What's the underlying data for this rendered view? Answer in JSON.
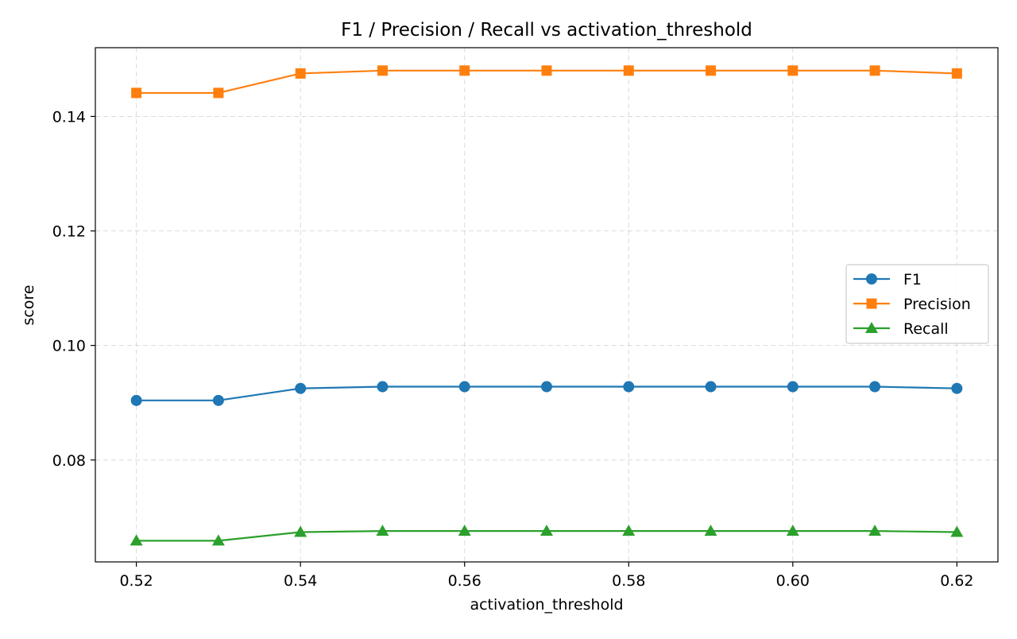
{
  "chart_data": {
    "type": "line",
    "title": "F1 / Precision / Recall vs activation_threshold",
    "xlabel": "activation_threshold",
    "ylabel": "score",
    "x": [
      0.52,
      0.53,
      0.54,
      0.55,
      0.56,
      0.57,
      0.58,
      0.59,
      0.6,
      0.61,
      0.62
    ],
    "xticks": [
      "0.52",
      "0.54",
      "0.56",
      "0.58",
      "0.60",
      "0.62"
    ],
    "yticks": [
      "0.08",
      "0.10",
      "0.12",
      "0.14"
    ],
    "xlim": [
      0.515,
      0.625
    ],
    "ylim": [
      0.0622,
      0.152
    ],
    "grid": true,
    "legend_position": "center-right",
    "series": [
      {
        "name": "F1",
        "color": "#1f77b4",
        "marker": "circle",
        "values": [
          0.0904,
          0.0904,
          0.0925,
          0.0928,
          0.0928,
          0.0928,
          0.0928,
          0.0928,
          0.0928,
          0.0928,
          0.0925
        ]
      },
      {
        "name": "Precision",
        "color": "#ff7f0e",
        "marker": "square",
        "values": [
          0.1441,
          0.1441,
          0.1475,
          0.148,
          0.148,
          0.148,
          0.148,
          0.148,
          0.148,
          0.148,
          0.1475
        ]
      },
      {
        "name": "Recall",
        "color": "#2ca02c",
        "marker": "triangle",
        "values": [
          0.0659,
          0.0659,
          0.0674,
          0.0676,
          0.0676,
          0.0676,
          0.0676,
          0.0676,
          0.0676,
          0.0676,
          0.0674
        ]
      }
    ]
  }
}
